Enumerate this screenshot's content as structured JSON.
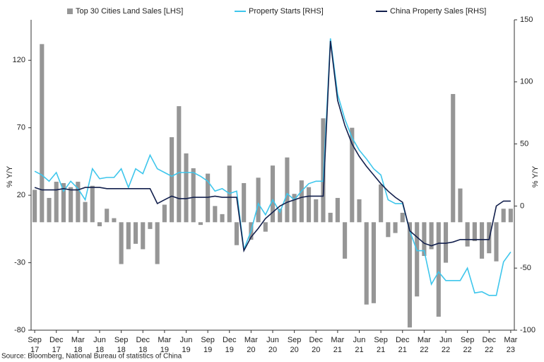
{
  "chart_data": {
    "type": "bar-line",
    "categories": [
      "Sep 17",
      null,
      null,
      "Dec 17",
      null,
      null,
      "Mar 18",
      null,
      null,
      "Jun 18",
      null,
      null,
      "Sep 18",
      null,
      null,
      "Dec 18",
      null,
      null,
      "Mar 19",
      null,
      null,
      "Jun 19",
      null,
      null,
      "Sep 19",
      null,
      null,
      "Dec 19",
      null,
      null,
      "Mar 20",
      null,
      null,
      "Jun 20",
      null,
      null,
      "Sep 20",
      null,
      null,
      "Dec 20",
      null,
      null,
      "Mar 21",
      null,
      null,
      "Jun 21",
      null,
      null,
      "Sep 21",
      null,
      null,
      "Dec 21",
      null,
      null,
      "Mar 22",
      null,
      null,
      "Jun 22",
      null,
      null,
      "Sep 22",
      null,
      null,
      "Dec 22",
      null,
      null,
      "Mar 23"
    ],
    "series": [
      {
        "name": "Top 30 Cities Land Sales [LHS]",
        "kind": "bar",
        "color": "#969696",
        "axis": "y",
        "values": [
          24,
          132,
          18,
          30,
          29,
          26,
          30,
          15,
          27,
          -3,
          10,
          3,
          -31,
          -20,
          -16,
          -20,
          -5,
          -31,
          13,
          63,
          86,
          51,
          40,
          -2,
          36,
          12,
          6,
          42,
          -17,
          29,
          -13,
          33,
          -7,
          42,
          10,
          48,
          21,
          31,
          26,
          17,
          77,
          7,
          18,
          -27,
          70,
          17,
          -61,
          -60,
          28,
          -11,
          -8,
          7,
          -78,
          -55,
          -25,
          -20,
          -70,
          -30,
          95,
          25,
          -18,
          -14,
          -27,
          -23,
          -29,
          10,
          10
        ]
      },
      {
        "name": "Property Starts [RHS]",
        "kind": "line",
        "color": "#3ec6ec",
        "axis": "y2",
        "values": [
          28,
          25,
          20,
          27,
          12,
          20,
          14,
          5,
          30,
          22,
          23,
          23,
          30,
          15,
          30,
          26,
          41,
          30,
          27,
          24,
          27,
          27,
          27,
          24,
          20,
          12,
          14,
          10,
          12,
          -35,
          -20,
          2,
          -7,
          5,
          -5,
          10,
          5,
          12,
          18,
          20,
          20,
          135,
          90,
          70,
          55,
          45,
          38,
          30,
          25,
          5,
          2,
          2,
          -20,
          -36,
          -36,
          -63,
          -53,
          -60,
          -60,
          -60,
          -50,
          -70,
          -69,
          -72,
          -72,
          -45,
          -37
        ]
      },
      {
        "name": "China Property Sales [RHS]",
        "kind": "line",
        "color": "#13204d",
        "axis": "y2",
        "values": [
          15,
          13,
          13,
          13,
          14,
          13,
          13,
          15,
          15,
          15,
          14,
          14,
          14,
          14,
          14,
          14,
          14,
          2,
          5,
          8,
          6,
          6,
          7,
          7,
          7,
          8,
          7,
          7,
          7,
          -36,
          -25,
          -18,
          -10,
          -5,
          0,
          3,
          5,
          7,
          8,
          8,
          8,
          133,
          85,
          65,
          50,
          40,
          32,
          25,
          18,
          12,
          7,
          3,
          -20,
          -25,
          -30,
          -32,
          -30,
          -30,
          -29,
          -27,
          -27,
          -27,
          -27,
          -27,
          0,
          4,
          4
        ]
      }
    ],
    "ylabel": "% Y/Y",
    "y2label": "% Y/Y",
    "ylim": [
      -80,
      150
    ],
    "yticks": [
      -80,
      -30,
      20,
      70,
      120
    ],
    "y2lim": [
      -100,
      150
    ],
    "y2ticks": [
      -100,
      -50,
      0,
      50,
      100,
      150
    ],
    "source": "Source: Bloomberg, National Bureau of statistics of China"
  }
}
